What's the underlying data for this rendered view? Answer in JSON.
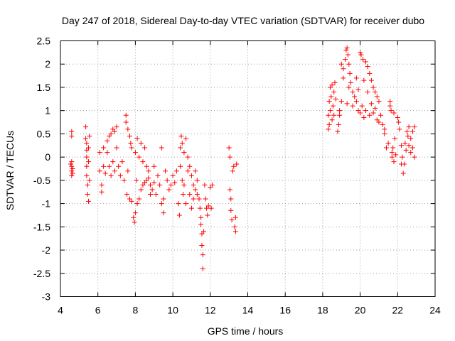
{
  "chart_data": {
    "type": "scatter",
    "title": "Day 247 of 2018, Sidereal Day-to-day VTEC variation (SDTVAR) for receiver dubo",
    "xlabel": "GPS time / hours",
    "ylabel": "SDTVAR / TECUs",
    "xlim": [
      4,
      24
    ],
    "ylim": [
      -3,
      2.5
    ],
    "xticks": [
      4,
      6,
      8,
      10,
      12,
      14,
      16,
      18,
      20,
      22,
      24
    ],
    "yticks": [
      2.5,
      2,
      1.5,
      1,
      0.5,
      0,
      -0.5,
      -1,
      -1.5,
      -2,
      -2.5,
      -3
    ],
    "xtick_labels": [
      "4",
      "6",
      "8",
      "10",
      "12",
      "14",
      "16",
      "18",
      "20",
      "22",
      "24"
    ],
    "ytick_labels": [
      "2.5",
      "2",
      "1.5",
      "1",
      "0.5",
      "0",
      "-0.5",
      "-1",
      "-1.5",
      "-2",
      "-2.5",
      "-3"
    ],
    "grid": true,
    "marker": "plus",
    "series": [
      {
        "name": "SDTVAR",
        "color": "#ff0000",
        "points": [
          [
            4.6,
            0.55
          ],
          [
            4.6,
            0.45
          ],
          [
            4.6,
            -0.1
          ],
          [
            4.6,
            -0.2
          ],
          [
            4.6,
            -0.3
          ],
          [
            4.6,
            -0.4
          ],
          [
            4.65,
            -0.25
          ],
          [
            4.65,
            -0.35
          ],
          [
            4.55,
            -0.15
          ],
          [
            5.35,
            0.65
          ],
          [
            5.35,
            0.4
          ],
          [
            5.4,
            0.3
          ],
          [
            5.4,
            0.15
          ],
          [
            5.4,
            0.0
          ],
          [
            5.4,
            -0.2
          ],
          [
            5.4,
            -0.4
          ],
          [
            5.45,
            -0.6
          ],
          [
            5.45,
            -0.8
          ],
          [
            5.5,
            -0.95
          ],
          [
            5.5,
            0.2
          ],
          [
            5.5,
            -0.1
          ],
          [
            5.55,
            0.45
          ],
          [
            5.55,
            -0.5
          ],
          [
            6.1,
            0.1
          ],
          [
            6.1,
            -0.3
          ],
          [
            6.2,
            -0.6
          ],
          [
            6.2,
            -0.75
          ],
          [
            6.3,
            0.2
          ],
          [
            6.3,
            -0.2
          ],
          [
            6.4,
            -0.35
          ],
          [
            6.5,
            0.35
          ],
          [
            6.5,
            0.1
          ],
          [
            6.6,
            -0.2
          ],
          [
            6.6,
            0.45
          ],
          [
            6.7,
            0.5
          ],
          [
            6.7,
            -0.4
          ],
          [
            6.8,
            0.6
          ],
          [
            6.8,
            -0.1
          ],
          [
            6.9,
            0.55
          ],
          [
            6.9,
            -0.3
          ],
          [
            7.0,
            0.65
          ],
          [
            7.0,
            0.2
          ],
          [
            7.1,
            -0.2
          ],
          [
            7.2,
            -0.4
          ],
          [
            7.3,
            -0.1
          ],
          [
            7.4,
            -0.5
          ],
          [
            7.5,
            0.9
          ],
          [
            7.5,
            0.75
          ],
          [
            7.55,
            -0.8
          ],
          [
            7.6,
            0.6
          ],
          [
            7.6,
            -0.3
          ],
          [
            7.7,
            0.45
          ],
          [
            7.7,
            -0.9
          ],
          [
            7.75,
            0.3
          ],
          [
            7.8,
            0.2
          ],
          [
            7.8,
            -0.95
          ],
          [
            7.9,
            -1.3
          ],
          [
            7.95,
            -1.4
          ],
          [
            8.0,
            -1.2
          ],
          [
            8.0,
            0.1
          ],
          [
            8.05,
            -0.5
          ],
          [
            8.1,
            -1.0
          ],
          [
            8.1,
            0.4
          ],
          [
            8.2,
            -0.9
          ],
          [
            8.2,
            0.0
          ],
          [
            8.3,
            -0.7
          ],
          [
            8.3,
            0.3
          ],
          [
            8.4,
            -0.6
          ],
          [
            8.4,
            -0.1
          ],
          [
            8.5,
            -0.55
          ],
          [
            8.5,
            0.2
          ],
          [
            8.6,
            -0.5
          ],
          [
            8.6,
            -0.2
          ],
          [
            8.7,
            -0.45
          ],
          [
            8.7,
            -0.3
          ],
          [
            8.8,
            -0.6
          ],
          [
            8.8,
            -0.8
          ],
          [
            8.9,
            -0.7
          ],
          [
            9.0,
            -0.55
          ],
          [
            9.0,
            -0.2
          ],
          [
            9.1,
            -0.8
          ],
          [
            9.2,
            -0.4
          ],
          [
            9.3,
            -0.6
          ],
          [
            9.4,
            0.2
          ],
          [
            9.4,
            -1.0
          ],
          [
            9.5,
            -0.9
          ],
          [
            9.5,
            -1.2
          ],
          [
            9.6,
            -0.3
          ],
          [
            9.7,
            -0.5
          ],
          [
            9.8,
            -0.7
          ],
          [
            9.9,
            -0.6
          ],
          [
            10.0,
            -0.4
          ],
          [
            10.1,
            -0.55
          ],
          [
            10.2,
            -0.3
          ],
          [
            10.3,
            -1.0
          ],
          [
            10.35,
            -1.25
          ],
          [
            10.4,
            0.2
          ],
          [
            10.4,
            -0.2
          ],
          [
            10.45,
            0.45
          ],
          [
            10.5,
            0.3
          ],
          [
            10.5,
            -0.5
          ],
          [
            10.55,
            -0.8
          ],
          [
            10.6,
            0.1
          ],
          [
            10.6,
            -0.6
          ],
          [
            10.7,
            0.4
          ],
          [
            10.7,
            -1.0
          ],
          [
            10.8,
            0.0
          ],
          [
            10.8,
            -0.3
          ],
          [
            10.9,
            -0.2
          ],
          [
            10.9,
            -0.8
          ],
          [
            11.0,
            -0.4
          ],
          [
            11.0,
            -1.1
          ],
          [
            11.1,
            -0.6
          ],
          [
            11.1,
            -0.9
          ],
          [
            11.2,
            -0.3
          ],
          [
            11.2,
            -0.7
          ],
          [
            11.3,
            -0.5
          ],
          [
            11.3,
            -0.8
          ],
          [
            11.4,
            -0.9
          ],
          [
            11.45,
            -1.1
          ],
          [
            11.5,
            -1.3
          ],
          [
            11.5,
            -1.45
          ],
          [
            11.55,
            -1.65
          ],
          [
            11.55,
            -1.9
          ],
          [
            11.6,
            -2.1
          ],
          [
            11.6,
            -2.4
          ],
          [
            11.65,
            -1.6
          ],
          [
            11.7,
            -0.6
          ],
          [
            11.75,
            -0.9
          ],
          [
            11.8,
            -1.1
          ],
          [
            11.85,
            -1.25
          ],
          [
            11.9,
            -1.05
          ],
          [
            12.0,
            -0.65
          ],
          [
            12.05,
            -1.1
          ],
          [
            12.1,
            -0.6
          ],
          [
            13.0,
            0.2
          ],
          [
            13.05,
            0.0
          ],
          [
            13.05,
            -0.7
          ],
          [
            13.1,
            -0.9
          ],
          [
            13.1,
            -1.15
          ],
          [
            13.15,
            -1.35
          ],
          [
            13.2,
            -0.3
          ],
          [
            13.25,
            -0.2
          ],
          [
            13.3,
            -1.5
          ],
          [
            13.35,
            -1.6
          ],
          [
            13.35,
            -1.3
          ],
          [
            13.4,
            -0.15
          ],
          [
            18.3,
            0.6
          ],
          [
            18.3,
            0.9
          ],
          [
            18.35,
            1.2
          ],
          [
            18.35,
            0.7
          ],
          [
            18.4,
            1.5
          ],
          [
            18.4,
            1.0
          ],
          [
            18.45,
            1.3
          ],
          [
            18.5,
            0.8
          ],
          [
            18.5,
            1.55
          ],
          [
            18.55,
            1.1
          ],
          [
            18.6,
            1.4
          ],
          [
            18.6,
            0.9
          ],
          [
            18.65,
            1.6
          ],
          [
            18.7,
            1.25
          ],
          [
            18.8,
            0.55
          ],
          [
            18.85,
            0.7
          ],
          [
            18.9,
            1.0
          ],
          [
            18.9,
            0.9
          ],
          [
            19.0,
            2.0
          ],
          [
            19.0,
            1.2
          ],
          [
            19.1,
            1.9
          ],
          [
            19.1,
            1.7
          ],
          [
            19.2,
            2.1
          ],
          [
            19.25,
            2.3
          ],
          [
            19.3,
            2.35
          ],
          [
            19.3,
            1.15
          ],
          [
            19.35,
            2.2
          ],
          [
            19.4,
            2.0
          ],
          [
            19.4,
            1.5
          ],
          [
            19.45,
            1.8
          ],
          [
            19.5,
            1.6
          ],
          [
            19.6,
            1.4
          ],
          [
            19.6,
            1.1
          ],
          [
            19.7,
            1.3
          ],
          [
            19.8,
            1.2
          ],
          [
            19.8,
            1.7
          ],
          [
            19.9,
            1.0
          ],
          [
            19.9,
            1.45
          ],
          [
            20.0,
            2.25
          ],
          [
            20.0,
            0.95
          ],
          [
            20.05,
            2.2
          ],
          [
            20.1,
            1.1
          ],
          [
            20.15,
            2.1
          ],
          [
            20.2,
            1.65
          ],
          [
            20.2,
            0.85
          ],
          [
            20.3,
            2.05
          ],
          [
            20.3,
            1.0
          ],
          [
            20.4,
            1.95
          ],
          [
            20.4,
            1.4
          ],
          [
            20.5,
            1.8
          ],
          [
            20.5,
            0.9
          ],
          [
            20.6,
            1.65
          ],
          [
            20.6,
            1.15
          ],
          [
            20.7,
            1.5
          ],
          [
            20.7,
            0.95
          ],
          [
            20.8,
            1.4
          ],
          [
            20.8,
            1.05
          ],
          [
            20.9,
            1.3
          ],
          [
            20.9,
            0.8
          ],
          [
            21.0,
            1.2
          ],
          [
            21.0,
            0.75
          ],
          [
            21.1,
            0.9
          ],
          [
            21.2,
            0.7
          ],
          [
            21.3,
            0.6
          ],
          [
            21.3,
            0.5
          ],
          [
            21.4,
            0.2
          ],
          [
            21.5,
            0.3
          ],
          [
            21.6,
            1.2
          ],
          [
            21.6,
            1.1
          ],
          [
            21.65,
            1.0
          ],
          [
            21.7,
            0.1
          ],
          [
            21.7,
            0.0
          ],
          [
            21.75,
            0.2
          ],
          [
            21.8,
            -0.1
          ],
          [
            21.8,
            0.95
          ],
          [
            21.85,
            0.4
          ],
          [
            21.9,
            0.05
          ],
          [
            22.0,
            0.85
          ],
          [
            22.05,
            0.75
          ],
          [
            22.1,
            0.6
          ],
          [
            22.2,
            0.25
          ],
          [
            22.2,
            -0.15
          ],
          [
            22.25,
            0.0
          ],
          [
            22.3,
            -0.35
          ],
          [
            22.35,
            -0.15
          ],
          [
            22.4,
            0.3
          ],
          [
            22.45,
            0.15
          ],
          [
            22.5,
            0.55
          ],
          [
            22.55,
            0.45
          ],
          [
            22.6,
            0.25
          ],
          [
            22.6,
            0.65
          ],
          [
            22.7,
            0.4
          ],
          [
            22.7,
            0.1
          ],
          [
            22.8,
            0.55
          ],
          [
            22.8,
            0.2
          ],
          [
            22.9,
            0.65
          ],
          [
            22.9,
            0.0
          ]
        ]
      }
    ]
  }
}
